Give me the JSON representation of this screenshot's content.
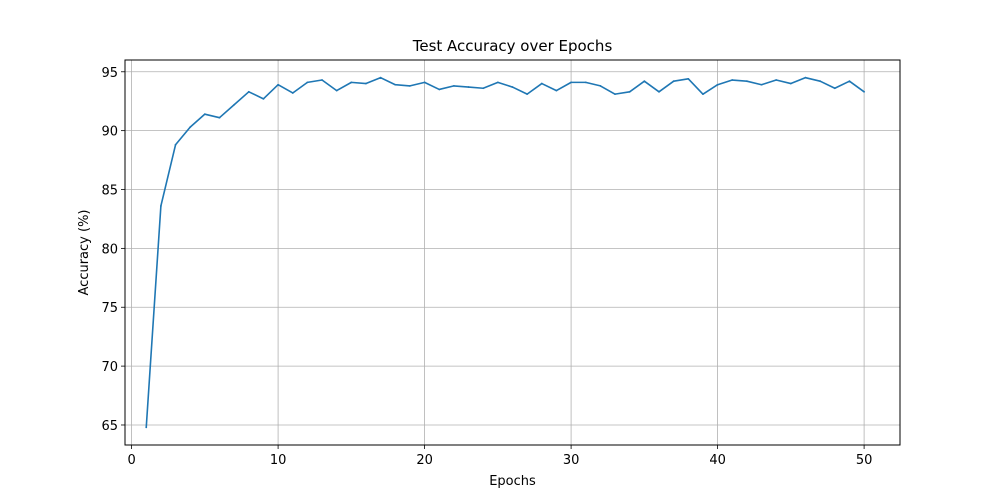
{
  "chart_data": {
    "type": "line",
    "title": "Test Accuracy over Epochs",
    "xlabel": "Epochs",
    "ylabel": "Accuracy (%)",
    "xlim": [
      -0.45,
      52.45
    ],
    "ylim": [
      63.3,
      96.0
    ],
    "xticks": [
      0,
      10,
      20,
      30,
      40,
      50
    ],
    "yticks": [
      65,
      70,
      75,
      80,
      85,
      90,
      95
    ],
    "grid": true,
    "line_color": "#1f77b4",
    "series": [
      {
        "x": [
          1,
          2,
          3,
          4,
          5,
          6,
          7,
          8,
          9,
          10,
          11,
          12,
          13,
          14,
          15,
          16,
          17,
          18,
          19,
          20,
          21,
          22,
          23,
          24,
          25,
          26,
          27,
          28,
          29,
          30,
          31,
          32,
          33,
          34,
          35,
          36,
          37,
          38,
          39,
          40,
          41,
          42,
          43,
          44,
          45,
          46,
          47,
          48,
          49,
          50
        ],
        "values": [
          64.8,
          83.6,
          88.8,
          90.3,
          91.4,
          91.1,
          92.2,
          93.3,
          92.7,
          93.9,
          93.2,
          94.1,
          94.3,
          93.4,
          94.1,
          94.0,
          94.5,
          93.9,
          93.8,
          94.1,
          93.5,
          93.8,
          93.7,
          93.6,
          94.1,
          93.7,
          93.1,
          94.0,
          93.4,
          94.1,
          94.1,
          93.8,
          93.1,
          93.3,
          94.2,
          93.3,
          94.2,
          94.4,
          93.1,
          93.9,
          94.3,
          94.2,
          93.9,
          94.3,
          94.0,
          94.5,
          94.2,
          93.6,
          94.2,
          93.3
        ]
      }
    ]
  }
}
